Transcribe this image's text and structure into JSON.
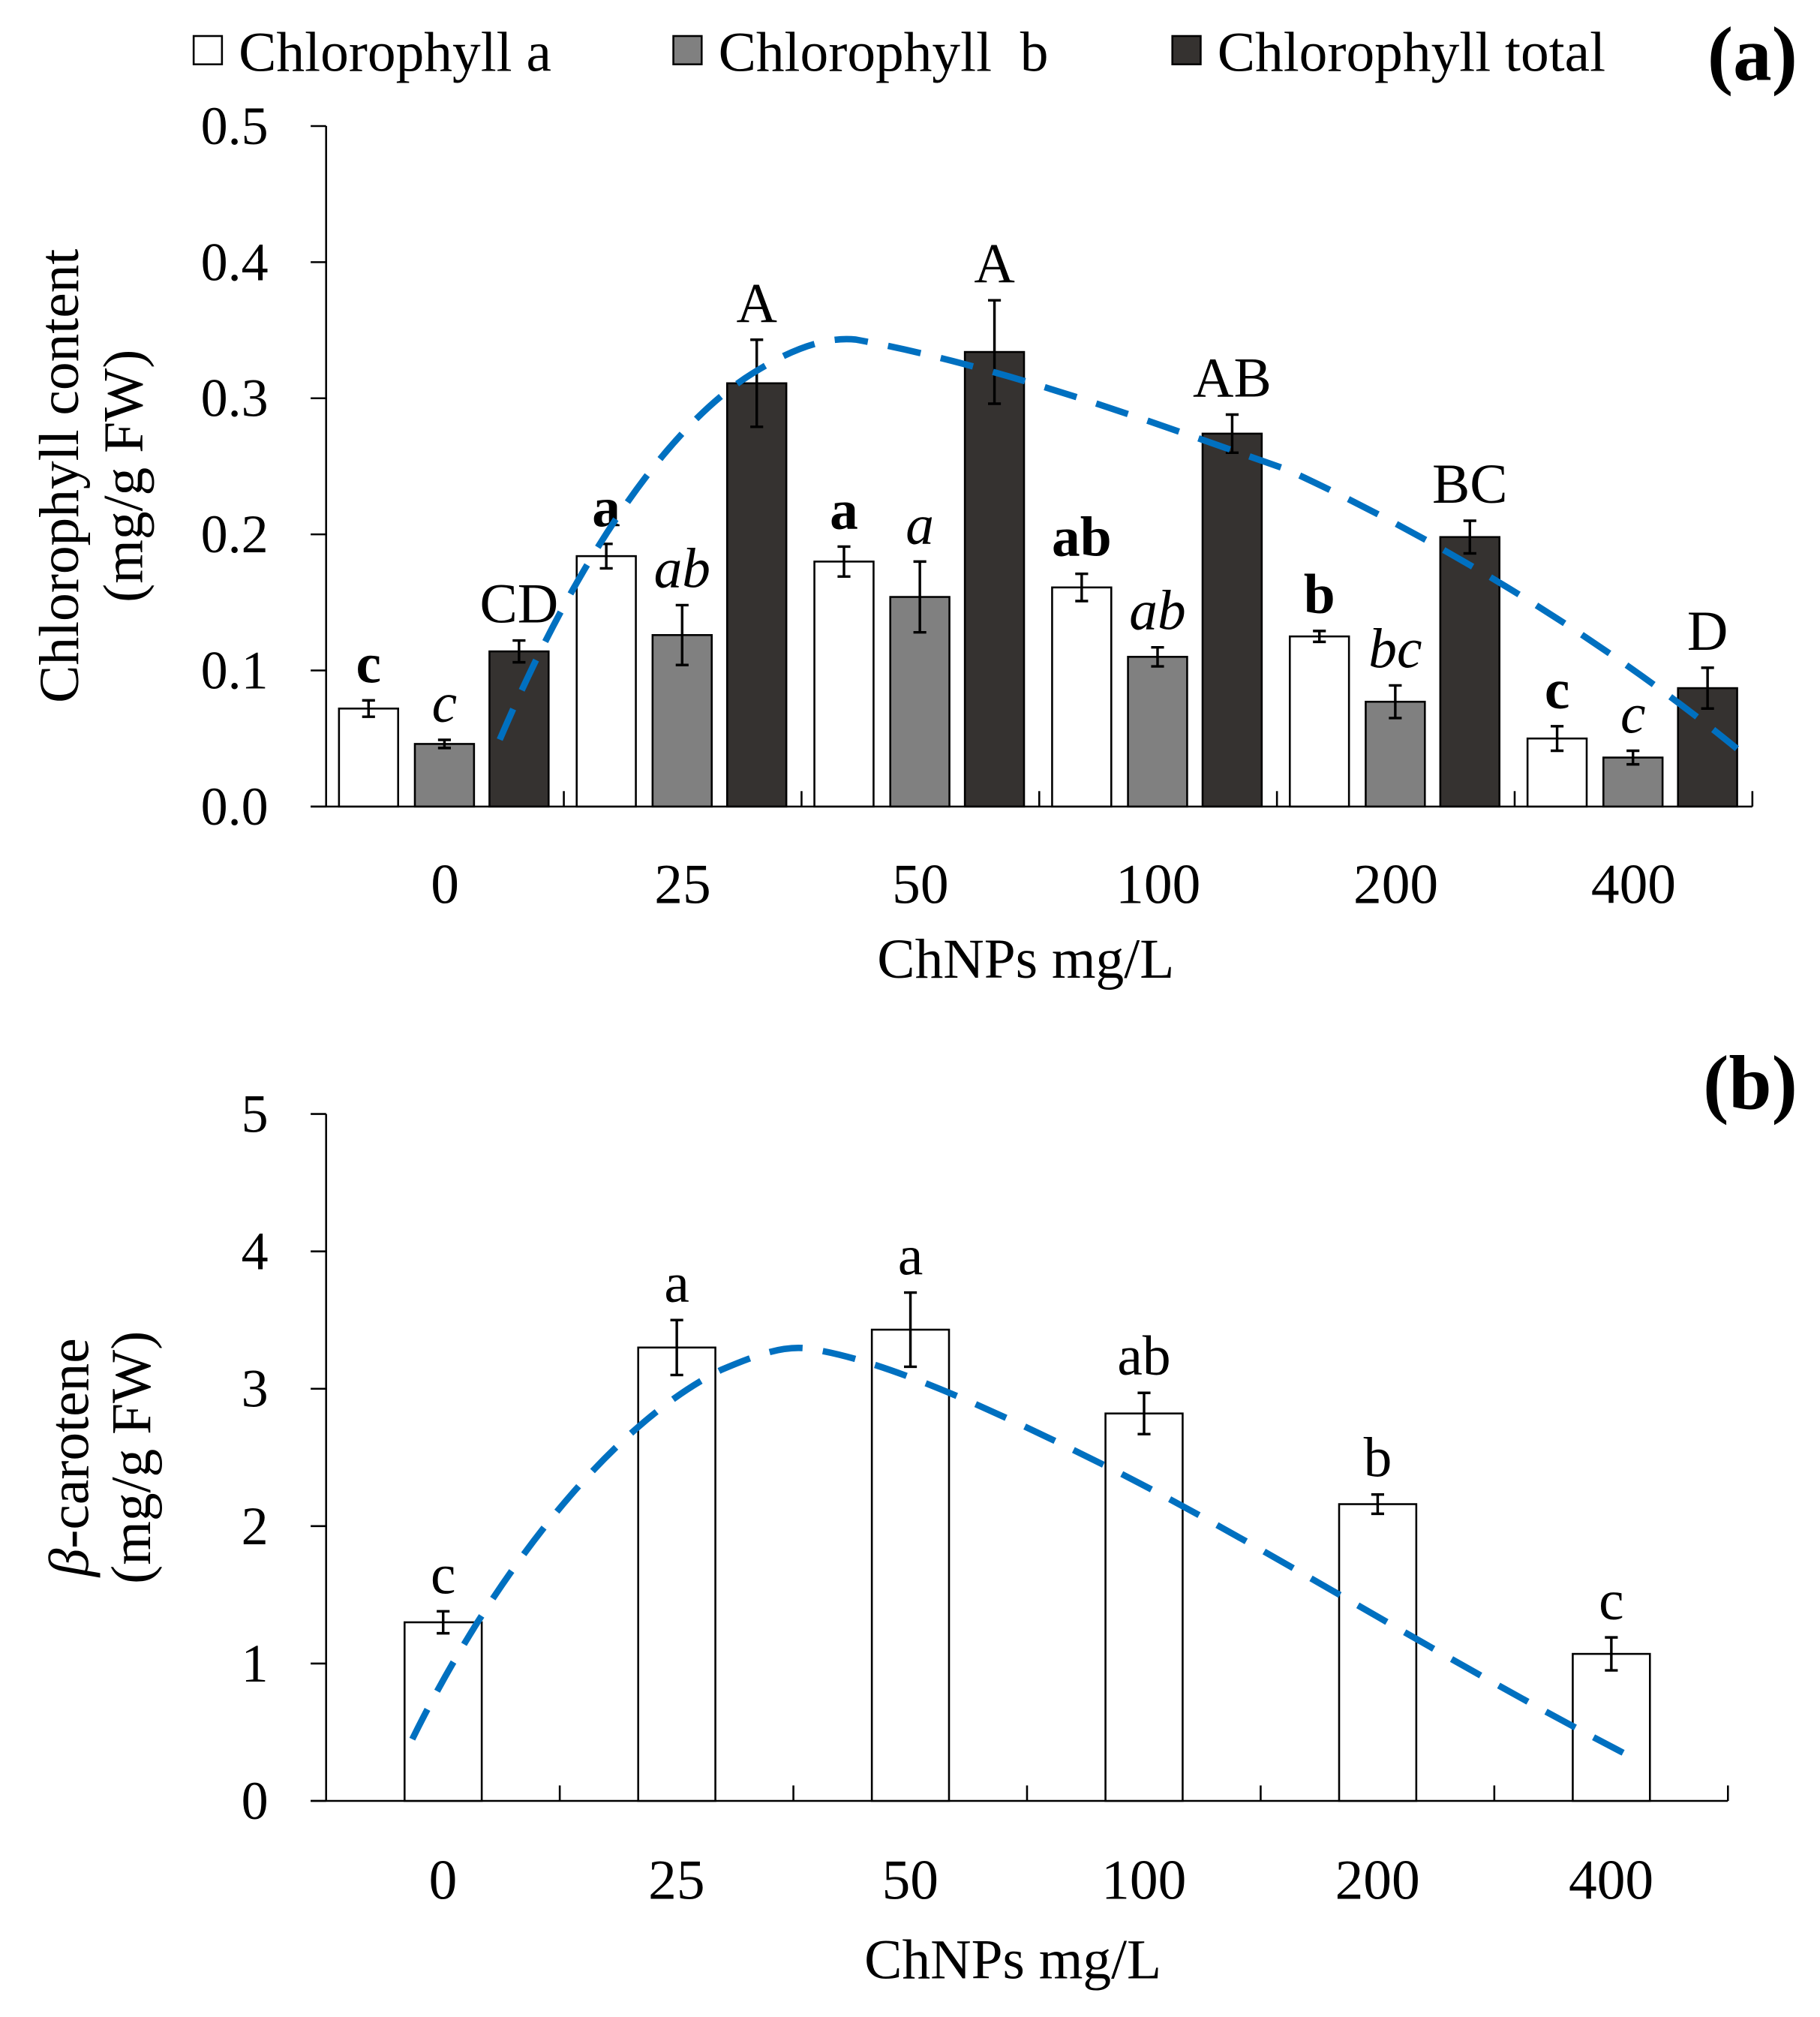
{
  "chart_data": [
    {
      "type": "bar",
      "panel_label": "(a)",
      "categories": [
        "0",
        "25",
        "50",
        "100",
        "200",
        "400"
      ],
      "xlabel": "ChNPs mg/L",
      "ylabel": [
        "Chlorophyll content",
        "(mg/g FW)"
      ],
      "ylim": [
        0,
        0.5
      ],
      "yticks": [
        "0.0",
        "0.1",
        "0.2",
        "0.3",
        "0.4",
        "0.5"
      ],
      "grid": false,
      "legend_position": "top",
      "trendline": {
        "style": "dashed",
        "color": "#0070C0",
        "series": "Chlorophyll total"
      },
      "series": [
        {
          "name": "Chlorophyll a",
          "color": "#FFFFFF",
          "values": [
            0.072,
            0.184,
            0.18,
            0.161,
            0.125,
            0.05
          ],
          "errors": [
            0.006,
            0.009,
            0.011,
            0.01,
            0.004,
            0.009
          ],
          "letters": [
            "c",
            "a",
            "a",
            "ab",
            "b",
            "c"
          ],
          "letter_style": "bold"
        },
        {
          "name": "Chlorophyll  b",
          "color": "#808080",
          "values": [
            0.046,
            0.126,
            0.154,
            0.11,
            0.077,
            0.036
          ],
          "errors": [
            0.003,
            0.022,
            0.026,
            0.007,
            0.012,
            0.005
          ],
          "letters": [
            "c",
            "ab",
            "a",
            "ab",
            "bc",
            "c"
          ],
          "letter_style": "italic"
        },
        {
          "name": "Chlorophyll total",
          "color": "#353230",
          "values": [
            0.114,
            0.311,
            0.334,
            0.274,
            0.198,
            0.087
          ],
          "errors": [
            0.008,
            0.032,
            0.038,
            0.014,
            0.012,
            0.015
          ],
          "letters": [
            "CD",
            "A",
            "A",
            "AB",
            "BC",
            "D"
          ],
          "letter_style": "normal"
        }
      ]
    },
    {
      "type": "bar",
      "panel_label": "(b)",
      "categories": [
        "0",
        "25",
        "50",
        "100",
        "200",
        "400"
      ],
      "xlabel": "ChNPs mg/L",
      "ylabel": [
        "β",
        "-carotene",
        "(mg/g FW)"
      ],
      "ylim": [
        0,
        5
      ],
      "yticks": [
        "0",
        "1",
        "2",
        "3",
        "4",
        "5"
      ],
      "grid": false,
      "trendline": {
        "style": "dashed",
        "color": "#0070C0"
      },
      "series": [
        {
          "color": "#FFFFFF",
          "values": [
            1.3,
            3.3,
            3.43,
            2.82,
            2.16,
            1.07
          ],
          "errors": [
            0.08,
            0.2,
            0.27,
            0.15,
            0.07,
            0.12
          ],
          "letters": [
            "c",
            "a",
            "a",
            "ab",
            "b",
            "c"
          ],
          "letter_style": "normal"
        }
      ]
    }
  ]
}
